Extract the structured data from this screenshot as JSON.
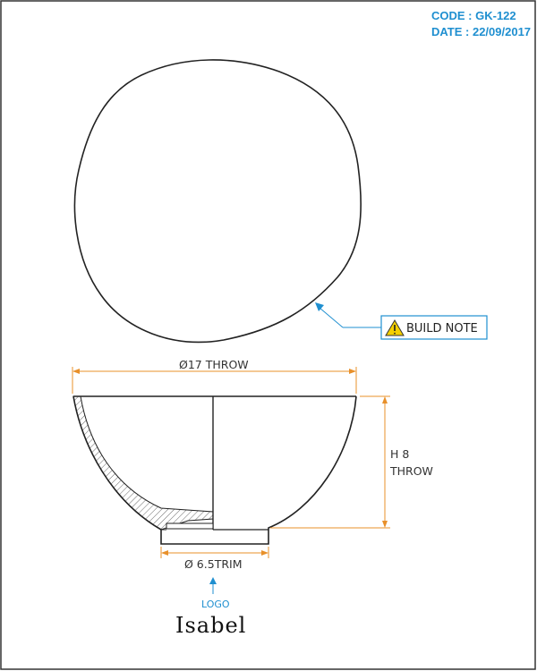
{
  "header": {
    "code": "CODE : GK-122",
    "date": "DATE : 22/09/2017"
  },
  "callout": {
    "label": "BUILD NOTE",
    "icon": "warning-icon"
  },
  "dimensions": {
    "diameter_top": "Ø17 THROW",
    "height_line1": "H  8",
    "height_line2": "THROW",
    "diameter_base": "Ø 6.5TRIM"
  },
  "logo": {
    "label": "LOGO",
    "name": "Isabel"
  },
  "colors": {
    "header": "#1f8fd0",
    "dimension": "#e8902a",
    "leader": "#1f8fd0",
    "outline": "#222222",
    "warning": "#f5d000"
  }
}
